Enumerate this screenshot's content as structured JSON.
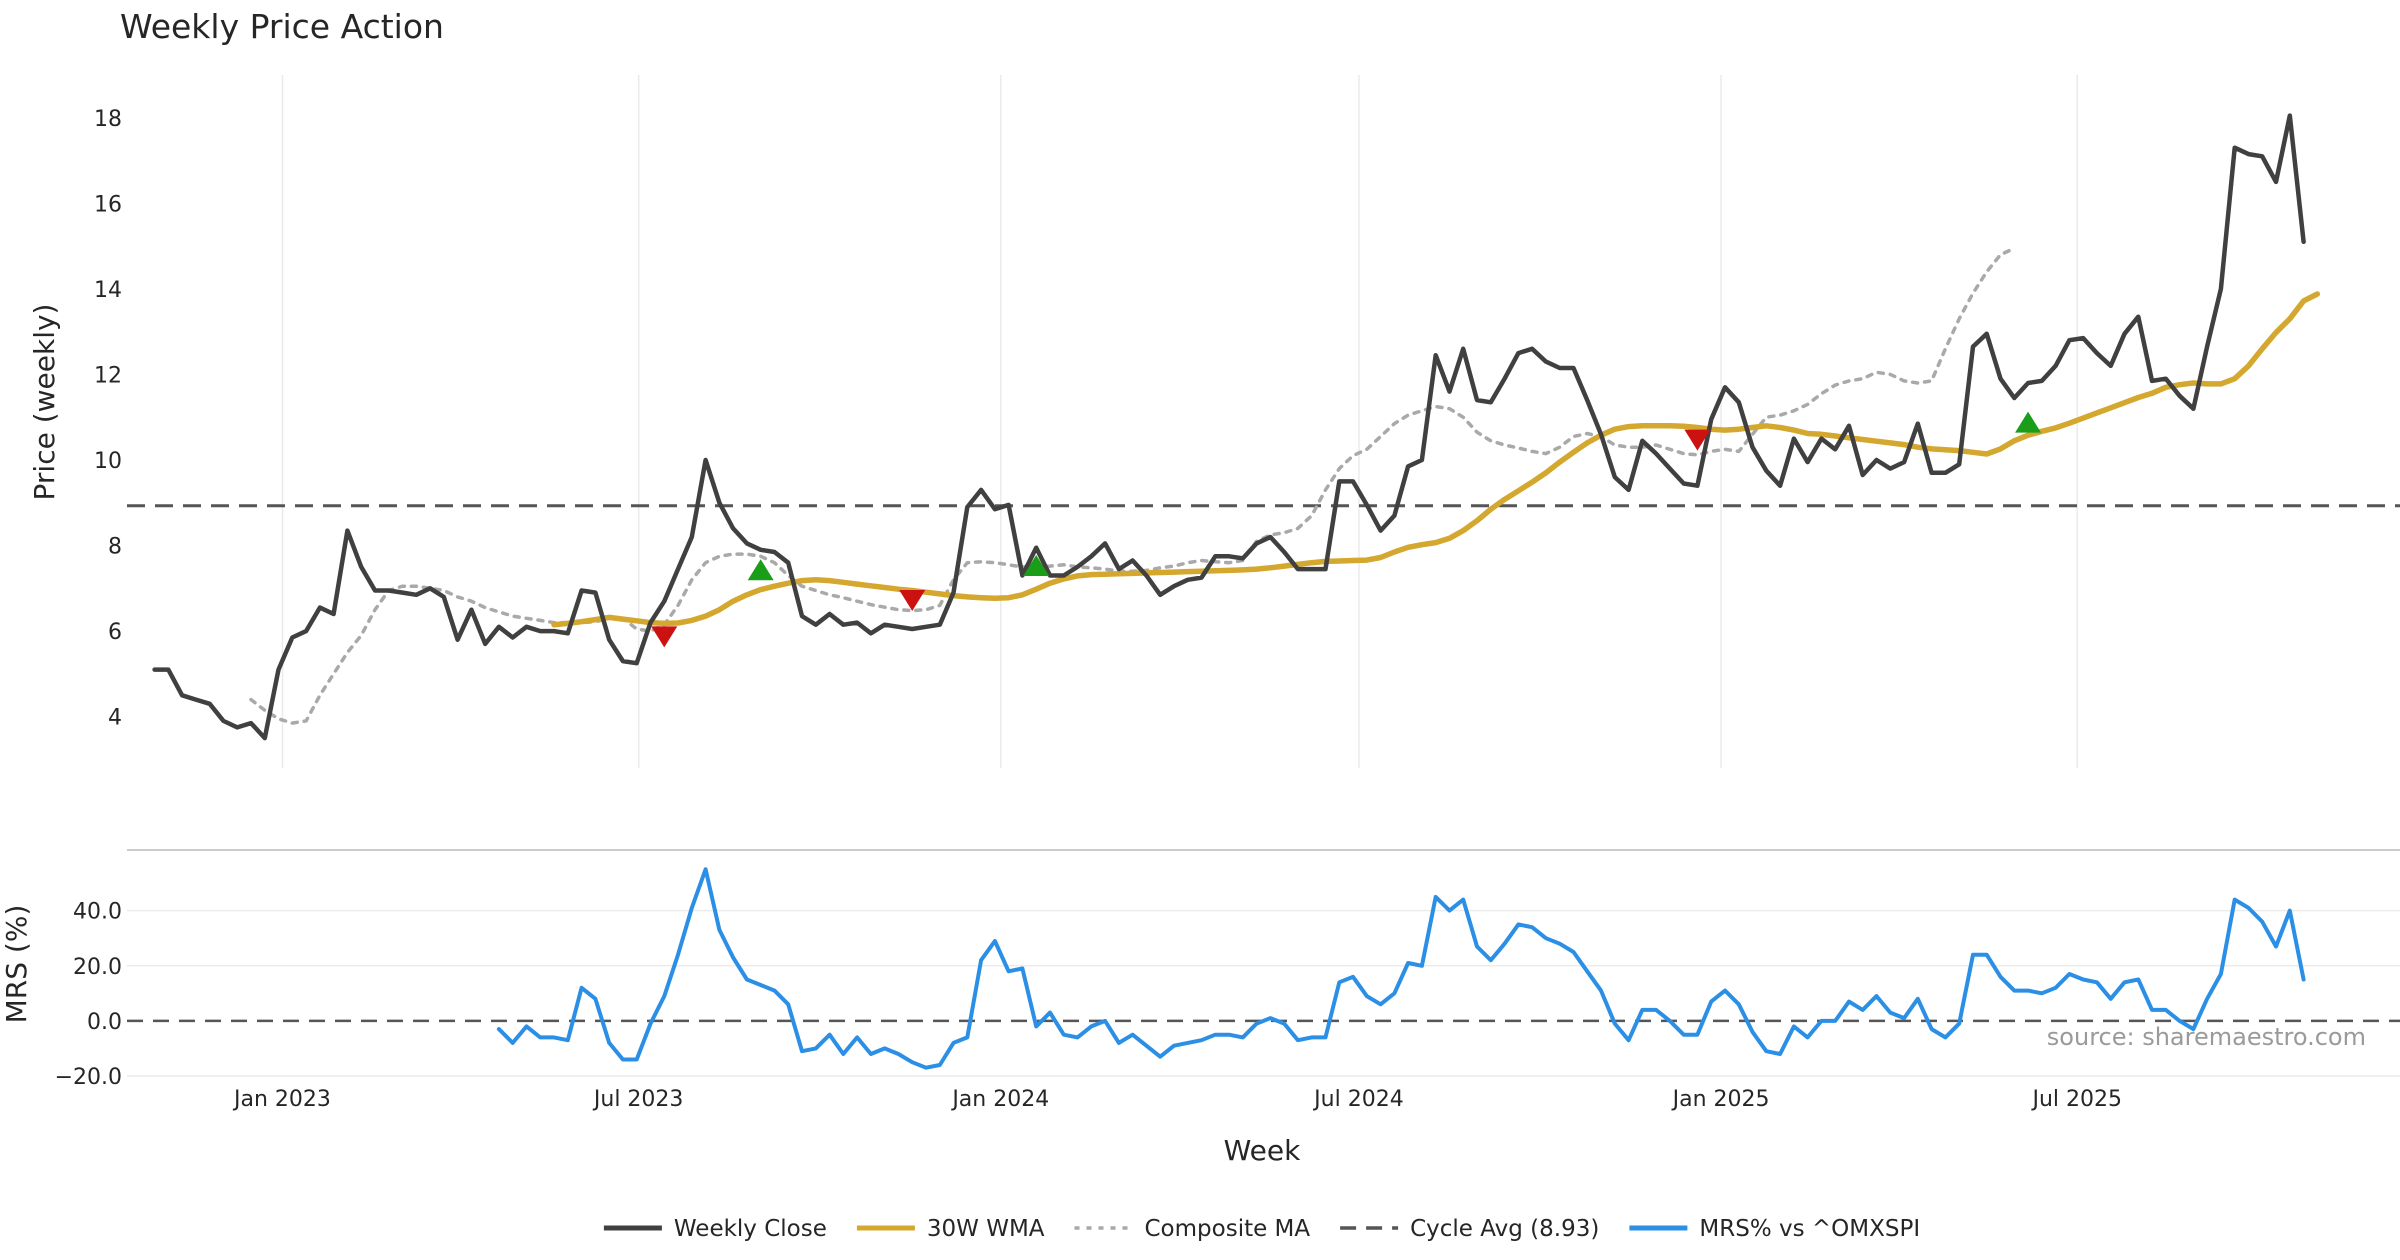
{
  "chart_data": [
    {
      "type": "line",
      "title": "Weekly Price Action",
      "xlabel": "",
      "ylabel": "Price (weekly)",
      "ylim": [
        2.8,
        19.0
      ],
      "y_ticks": [
        4,
        6,
        8,
        10,
        12,
        14,
        16,
        18
      ],
      "grid": "vertical",
      "cycle_avg": 8.93,
      "series": [
        {
          "name": "Weekly Close",
          "color": "#404040",
          "start": "2022-10-28",
          "values": [
            5.1,
            5.1,
            4.5,
            4.4,
            4.3,
            3.9,
            3.75,
            3.85,
            3.5,
            5.1,
            5.85,
            6.0,
            6.55,
            6.4,
            8.35,
            7.5,
            6.95,
            6.95,
            6.9,
            6.85,
            7.0,
            6.8,
            5.8,
            6.5,
            5.7,
            6.1,
            5.85,
            6.1,
            6.0,
            6.0,
            5.95,
            6.95,
            6.9,
            5.8,
            5.3,
            5.25,
            6.2,
            6.7,
            7.45,
            8.2,
            10.0,
            9.0,
            8.4,
            8.05,
            7.9,
            7.85,
            7.6,
            6.35,
            6.15,
            6.4,
            6.15,
            6.2,
            5.95,
            6.15,
            6.1,
            6.05,
            6.1,
            6.15,
            6.9,
            8.9,
            9.3,
            8.85,
            8.95,
            7.3,
            7.95,
            7.3,
            7.3,
            7.5,
            7.75,
            8.05,
            7.45,
            7.65,
            7.3,
            6.85,
            7.05,
            7.2,
            7.25,
            7.75,
            7.75,
            7.7,
            8.05,
            8.2,
            7.85,
            7.45,
            7.45,
            7.45,
            9.5,
            9.5,
            8.95,
            8.35,
            8.7,
            9.85,
            10.0,
            12.45,
            11.6,
            12.6,
            11.4,
            11.35,
            11.9,
            12.5,
            12.6,
            12.3,
            12.15,
            12.15,
            11.4,
            10.6,
            9.6,
            9.3,
            10.45,
            10.15,
            9.8,
            9.45,
            9.4,
            10.95,
            11.7,
            11.35,
            10.3,
            9.75,
            9.4,
            10.5,
            9.95,
            10.5,
            10.25,
            10.8,
            9.65,
            10.0,
            9.8,
            9.95,
            10.85,
            9.7,
            9.7,
            9.9,
            12.65,
            12.95,
            11.9,
            11.45,
            11.8,
            11.85,
            12.2,
            12.8,
            12.85,
            12.5,
            12.2,
            12.95,
            13.35,
            11.85,
            11.9,
            11.5,
            11.2,
            12.65,
            14.0,
            17.3,
            17.15,
            17.1,
            16.5,
            18.05,
            15.1
          ]
        },
        {
          "name": "30W WMA",
          "color": "#d4a82e",
          "start": "2023-05-19",
          "values": [
            6.15,
            6.18,
            6.22,
            6.27,
            6.32,
            6.28,
            6.24,
            6.2,
            6.18,
            6.19,
            6.25,
            6.35,
            6.5,
            6.7,
            6.85,
            6.97,
            7.05,
            7.12,
            7.18,
            7.2,
            7.18,
            7.14,
            7.1,
            7.06,
            7.02,
            6.98,
            6.95,
            6.91,
            6.87,
            6.83,
            6.8,
            6.78,
            6.77,
            6.78,
            6.85,
            6.98,
            7.12,
            7.22,
            7.29,
            7.32,
            7.33,
            7.34,
            7.35,
            7.36,
            7.37,
            7.38,
            7.39,
            7.4,
            7.41,
            7.42,
            7.43,
            7.45,
            7.48,
            7.52,
            7.56,
            7.6,
            7.63,
            7.64,
            7.65,
            7.66,
            7.72,
            7.85,
            7.96,
            8.02,
            8.07,
            8.17,
            8.35,
            8.58,
            8.85,
            9.08,
            9.28,
            9.48,
            9.7,
            9.95,
            10.18,
            10.4,
            10.58,
            10.72,
            10.78,
            10.8,
            10.8,
            10.8,
            10.79,
            10.76,
            10.72,
            10.7,
            10.72,
            10.76,
            10.8,
            10.76,
            10.7,
            10.62,
            10.6,
            10.56,
            10.52,
            10.48,
            10.44,
            10.4,
            10.36,
            10.3,
            10.26,
            10.24,
            10.22,
            10.18,
            10.14,
            10.26,
            10.45,
            10.58,
            10.67,
            10.75,
            10.86,
            10.98,
            11.1,
            11.22,
            11.34,
            11.46,
            11.56,
            11.7,
            11.76,
            11.8,
            11.78,
            11.78,
            11.9,
            12.2,
            12.6,
            12.98,
            13.3,
            13.72,
            13.88
          ]
        },
        {
          "name": "Composite MA",
          "color": "#a9a9a9",
          "start": "2022-12-16",
          "values": [
            4.4,
            4.15,
            3.95,
            3.85,
            3.9,
            4.5,
            5.0,
            5.5,
            5.9,
            6.5,
            6.95,
            7.05,
            7.05,
            7.0,
            6.95,
            6.8,
            6.7,
            6.55,
            6.45,
            6.35,
            6.3,
            6.25,
            6.2,
            6.2,
            6.2,
            6.22,
            6.3,
            6.3,
            6.05,
            6.0,
            6.15,
            6.6,
            7.2,
            7.6,
            7.75,
            7.8,
            7.8,
            7.75,
            7.6,
            7.3,
            7.05,
            6.95,
            6.85,
            6.78,
            6.7,
            6.62,
            6.56,
            6.5,
            6.48,
            6.5,
            6.6,
            7.2,
            7.6,
            7.62,
            7.6,
            7.55,
            7.5,
            7.5,
            7.52,
            7.55,
            7.5,
            7.48,
            7.45,
            7.4,
            7.4,
            7.42,
            7.48,
            7.52,
            7.6,
            7.65,
            7.62,
            7.6,
            7.65,
            8.1,
            8.25,
            8.3,
            8.4,
            8.7,
            9.3,
            9.8,
            10.1,
            10.25,
            10.55,
            10.85,
            11.05,
            11.15,
            11.25,
            11.2,
            11.0,
            10.65,
            10.45,
            10.35,
            10.28,
            10.2,
            10.15,
            10.3,
            10.55,
            10.62,
            10.55,
            10.35,
            10.3,
            10.3,
            10.35,
            10.25,
            10.15,
            10.12,
            10.2,
            10.25,
            10.2,
            10.6,
            11.0,
            11.05,
            11.15,
            11.3,
            11.55,
            11.75,
            11.85,
            11.9,
            12.05,
            12.0,
            11.85,
            11.8,
            11.85,
            12.6,
            13.3,
            13.9,
            14.4,
            14.8,
            14.95
          ]
        }
      ]
    },
    {
      "type": "line",
      "title": "",
      "xlabel": "Week",
      "ylabel": "MRS (%)",
      "ylim": [
        -20.0,
        62.0
      ],
      "y_ticks": [
        -20.0,
        0.0,
        20.0,
        40.0
      ],
      "x_ticks": [
        "Jan 2023",
        "Jul 2023",
        "Jan 2024",
        "Jul 2024",
        "Jan 2025",
        "Jul 2025"
      ],
      "series": [
        {
          "name": "MRS% vs ^OMXSPI",
          "color": "#2b8fe6",
          "start": "2023-04-21",
          "values": [
            -3,
            -8,
            -2,
            -6,
            -6,
            -7,
            12,
            8,
            -8,
            -14,
            -14,
            -1,
            9,
            24,
            41,
            55,
            33,
            23,
            15,
            13,
            11,
            6,
            -11,
            -10,
            -5,
            -12,
            -6,
            -12,
            -10,
            -12,
            -15,
            -17,
            -16,
            -8,
            -6,
            22,
            29,
            18,
            19,
            -2,
            3,
            -5,
            -6,
            -2,
            0,
            -8,
            -5,
            -9,
            -13,
            -9,
            -8,
            -7,
            -5,
            -5,
            -6,
            -1,
            1,
            -1,
            -7,
            -6,
            -6,
            14,
            16,
            9,
            6,
            10,
            21,
            20,
            45,
            40,
            44,
            27,
            22,
            28,
            35,
            34,
            30,
            28,
            25,
            18,
            11,
            -1,
            -7,
            4,
            4,
            0,
            -5,
            -5,
            7,
            11,
            6,
            -4,
            -11,
            -12,
            -2,
            -6,
            0,
            0,
            7,
            4,
            9,
            3,
            1,
            8,
            -3,
            -6,
            -1,
            24,
            24,
            16,
            11,
            11,
            10,
            12,
            17,
            15,
            14,
            8,
            14,
            15,
            4,
            4,
            0,
            -3,
            8,
            17,
            44,
            41,
            36,
            27,
            40,
            15
          ]
        }
      ]
    }
  ],
  "legend": [
    {
      "label": "Weekly Close",
      "color": "#404040",
      "style": "solid"
    },
    {
      "label": "30W WMA",
      "color": "#d4a82e",
      "style": "solid"
    },
    {
      "label": "Composite MA",
      "color": "#a9a9a9",
      "style": "dotted"
    },
    {
      "label": "Cycle Avg (8.93)",
      "color": "#555555",
      "style": "dashed"
    },
    {
      "label": "MRS% vs ^OMXSPI",
      "color": "#2b8fe6",
      "style": "solid"
    }
  ],
  "signals": {
    "buy": [
      {
        "date": "2023-09-01",
        "price": 7.4
      },
      {
        "date": "2024-01-19",
        "price": 7.5
      },
      {
        "date": "2025-06-06",
        "price": 10.85
      }
    ],
    "sell": [
      {
        "date": "2023-07-14",
        "price": 5.9
      },
      {
        "date": "2023-11-17",
        "price": 6.75
      },
      {
        "date": "2024-12-20",
        "price": 10.5
      }
    ],
    "buy_color": "#1a9e1a",
    "sell_color": "#cc1111"
  },
  "source": "source: sharemaestro.com"
}
